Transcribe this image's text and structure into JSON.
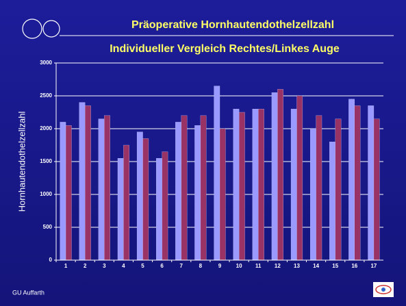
{
  "chart_data": {
    "type": "bar",
    "title": "Präoperative Hornhautendothelzellzahl",
    "subtitle": "Individueller Vergleich Rechtes/Linkes Auge",
    "y_label": "Hornhautendothelzellzahl",
    "footer": "GU Auffarth",
    "categories": [
      "1",
      "2",
      "3",
      "4",
      "5",
      "6",
      "7",
      "8",
      "9",
      "10",
      "11",
      "12",
      "13",
      "14",
      "15",
      "16",
      "17"
    ],
    "series": [
      {
        "color": "#9999ff",
        "values": [
          2100,
          2400,
          2150,
          1550,
          1950,
          1550,
          2100,
          2050,
          2650,
          2300,
          2300,
          2550,
          2300,
          2000,
          1800,
          2450,
          2350
        ]
      },
      {
        "color": "#993366",
        "values": [
          2050,
          2350,
          2200,
          1750,
          1850,
          1650,
          2200,
          2200,
          2000,
          2250,
          2300,
          2600,
          2500,
          2200,
          2150,
          2350,
          2150
        ]
      }
    ],
    "ylim": [
      0,
      3000
    ],
    "yticks": [
      0,
      500,
      1000,
      1500,
      2000,
      2500,
      3000
    ],
    "grid": true
  }
}
